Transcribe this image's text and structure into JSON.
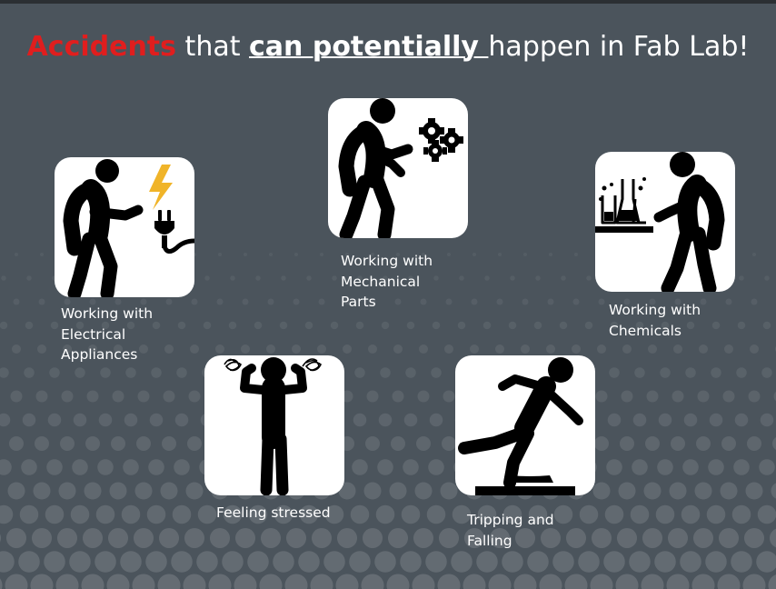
{
  "title": {
    "part1": "Accidents",
    "part2": " that ",
    "part3": "can potentially ",
    "part4": "happen in Fab Lab!"
  },
  "colors": {
    "background": "#4b545c",
    "accent": "#e01e1e",
    "icon": "#000000",
    "bolt": "#f0b429"
  },
  "cards": [
    {
      "icon": "electrical-appliance-icon",
      "caption": "Working with\nElectrical\nAppliances"
    },
    {
      "icon": "mechanical-parts-icon",
      "caption": "Working with\nMechanical\nParts"
    },
    {
      "icon": "chemicals-icon",
      "caption": "Working with\nChemicals"
    },
    {
      "icon": "stressed-person-icon",
      "caption": "Feeling stressed"
    },
    {
      "icon": "tripping-falling-icon",
      "caption": "Tripping and\nFalling"
    }
  ]
}
